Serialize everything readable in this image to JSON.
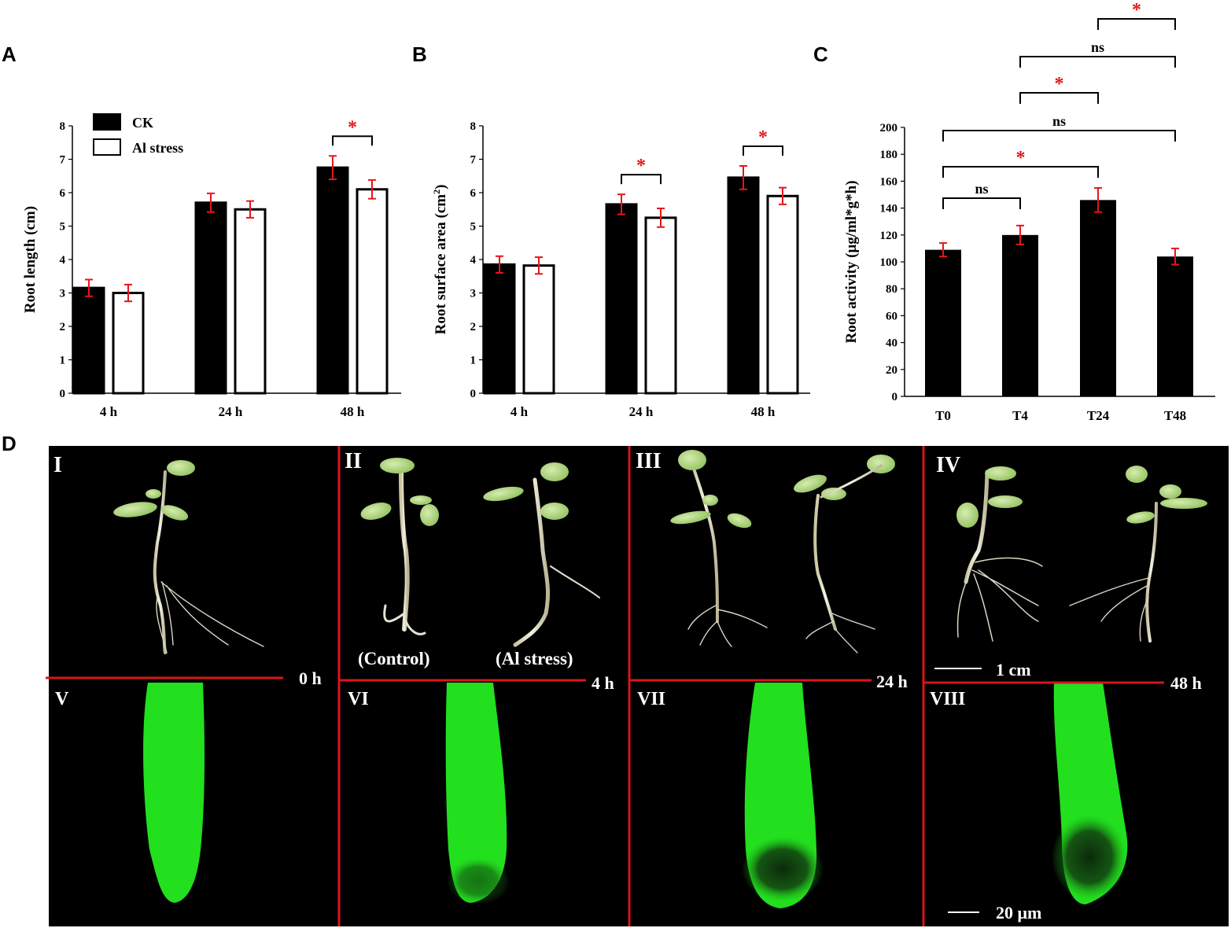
{
  "chart_data": [
    {
      "panel": "A",
      "type": "bar",
      "ylabel": "Root length (cm)",
      "categories": [
        "4 h",
        "24 h",
        "48 h"
      ],
      "ylim": [
        0,
        8
      ],
      "yticks": [
        0,
        1,
        2,
        3,
        4,
        5,
        6,
        7,
        8
      ],
      "legend": "top-left",
      "series": [
        {
          "name": "CK",
          "fill": "#000000",
          "values": [
            3.15,
            5.7,
            6.75
          ],
          "errors": [
            0.25,
            0.28,
            0.35
          ]
        },
        {
          "name": "Al stress",
          "fill": "#ffffff",
          "values": [
            3.0,
            5.5,
            6.1
          ],
          "errors": [
            0.25,
            0.25,
            0.28
          ]
        }
      ],
      "significance": [
        {
          "category": 2,
          "label": "*"
        }
      ]
    },
    {
      "panel": "B",
      "type": "bar",
      "ylabel": "Root surface area (cm",
      "ylabel_sup": "2",
      "ylabel_end": ")",
      "categories": [
        "4 h",
        "24 h",
        "48 h"
      ],
      "ylim": [
        0,
        8
      ],
      "yticks": [
        0,
        1,
        2,
        3,
        4,
        5,
        6,
        7,
        8
      ],
      "series": [
        {
          "name": "CK",
          "fill": "#000000",
          "values": [
            3.85,
            5.65,
            6.45
          ],
          "errors": [
            0.25,
            0.3,
            0.35
          ]
        },
        {
          "name": "Al stress",
          "fill": "#ffffff",
          "values": [
            3.82,
            5.25,
            5.9
          ],
          "errors": [
            0.25,
            0.28,
            0.25
          ]
        }
      ],
      "significance": [
        {
          "category": 1,
          "label": "*"
        },
        {
          "category": 2,
          "label": "*"
        }
      ]
    },
    {
      "panel": "C",
      "type": "bar",
      "ylabel": "Root activity (μg/ml*g*h)",
      "categories": [
        "T0",
        "T4",
        "T24",
        "T48"
      ],
      "ylim": [
        0,
        200
      ],
      "yticks": [
        0,
        20,
        40,
        60,
        80,
        100,
        120,
        140,
        160,
        180,
        200
      ],
      "series": [
        {
          "name": "",
          "fill": "#000000",
          "values": [
            109,
            120,
            146,
            104
          ],
          "errors": [
            5,
            7,
            9,
            6
          ]
        }
      ],
      "comparisons": [
        {
          "from": 0,
          "to": 1,
          "label": "ns"
        },
        {
          "from": 0,
          "to": 2,
          "label": "*"
        },
        {
          "from": 0,
          "to": 3,
          "label": "ns"
        },
        {
          "from": 1,
          "to": 2,
          "label": "*"
        },
        {
          "from": 1,
          "to": 3,
          "label": "ns"
        },
        {
          "from": 2,
          "to": 3,
          "label": "*"
        }
      ]
    }
  ],
  "panel_d": {
    "letter": "D",
    "top_labels": [
      "I",
      "II",
      "III",
      "IV"
    ],
    "bottom_labels": [
      "V",
      "VI",
      "VII",
      "VIII"
    ],
    "times": [
      "0 h",
      "4 h",
      "24 h",
      "48 h"
    ],
    "captions": {
      "control": "(Control)",
      "al_stress": "(Al stress)"
    },
    "scale_top": "1 cm",
    "scale_bottom": "20 μm",
    "colors": {
      "background": "#000000",
      "divider": "#d9141b",
      "fluorescence": "#22e01e"
    }
  },
  "colors": {
    "error_bar": "#e8141b",
    "significance": "#e8141b"
  }
}
